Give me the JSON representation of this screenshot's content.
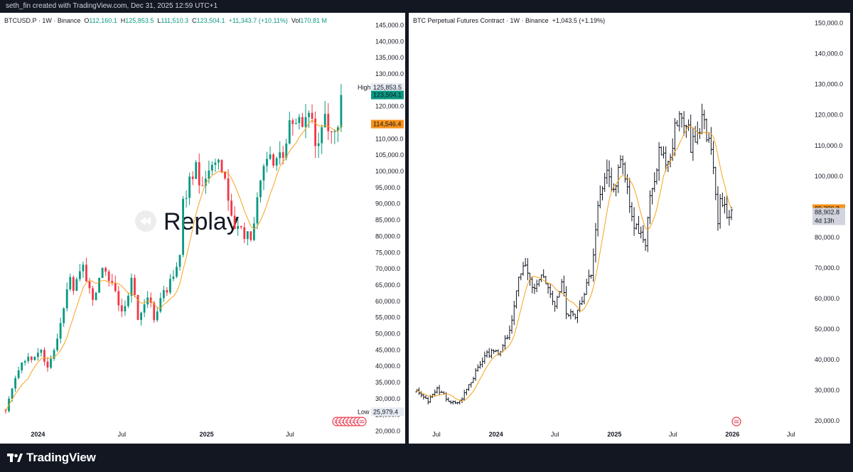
{
  "header": {
    "credit": "seth_fin created with TradingView.com, Dec 31, 2025 12:59 UTC+1"
  },
  "footer": {
    "brand": "TradingView"
  },
  "watermark": {
    "text": "Replay"
  },
  "colors": {
    "up": "#089981",
    "down": "#f23645",
    "ma": "#f7a21b",
    "bar": "#131722",
    "background": "#131722"
  },
  "left_legend": {
    "symbol": "BTCUSD.P · 1W · Binance",
    "open_label": "O",
    "open": "112,160.1",
    "high_label": "H",
    "high": "125,853.5",
    "low_label": "L",
    "low": "111,510.3",
    "close_label": "C",
    "close": "123,504.1",
    "change": "+11,343.7 (+10.11%)",
    "vol_label": "Vol",
    "vol": "170.81 M"
  },
  "right_legend": {
    "symbol": "BTC Perpetual Futures Contract · 1W · Binance",
    "change": "+1,043.5 (+1.19%)"
  },
  "chart_data": [
    {
      "type": "candlestick",
      "title": "BTCUSD.P · 1W · Binance",
      "y_ticks": [
        20000,
        25000,
        30000,
        35000,
        40000,
        45000,
        50000,
        55000,
        60000,
        65000,
        70000,
        75000,
        80000,
        85000,
        90000,
        95000,
        100000,
        105000,
        110000,
        115000,
        120000,
        125000,
        130000,
        135000,
        140000,
        145000
      ],
      "y_tick_labels": [
        "20,000.0",
        "25,000.0",
        "30,000.0",
        "35,000.0",
        "40,000.0",
        "45,000.0",
        "50,000.0",
        "55,000.0",
        "60,000.0",
        "65,000.0",
        "70,000.0",
        "75,000.0",
        "80,000.0",
        "85,000.0",
        "90,000.0",
        "95,000.0",
        "100,000.0",
        "105,000.0",
        "110,000.0",
        "115,000.0",
        "120,000.0",
        "125,000.0",
        "130,000.0",
        "135,000.0",
        "140,000.0",
        "145,000.0"
      ],
      "ylim": [
        17500,
        147500
      ],
      "x_labels": [
        "2024",
        "Jul",
        "2025",
        "Jul"
      ],
      "x_label_dates": [
        "2024-01-01",
        "2024-07-01",
        "2025-01-01",
        "2025-07-01"
      ],
      "x_range": [
        "2023-10-23",
        "2025-11-20"
      ],
      "key_values": {
        "high": 125853.5,
        "high_label": "High",
        "high_text": "125,853.5",
        "last_close": 123504.1,
        "last_close_text": "123,504.1",
        "ma_last": 114546.4,
        "ma_last_text": "114,546.4",
        "low": 25979.4,
        "low_label": "Low",
        "low_text": "25,979.4"
      },
      "anchors": [
        [
          "2023-10-23",
          26500
        ],
        [
          "2023-11-13",
          36500
        ],
        [
          "2023-12-04",
          42000
        ],
        [
          "2024-01-08",
          44000
        ],
        [
          "2024-01-22",
          40000
        ],
        [
          "2024-02-19",
          52000
        ],
        [
          "2024-03-11",
          68000
        ],
        [
          "2024-03-18",
          64000
        ],
        [
          "2024-04-08",
          70000
        ],
        [
          "2024-04-29",
          61000
        ],
        [
          "2024-05-20",
          69000
        ],
        [
          "2024-06-10",
          66000
        ],
        [
          "2024-07-01",
          57000
        ],
        [
          "2024-07-22",
          66000
        ],
        [
          "2024-08-05",
          55000
        ],
        [
          "2024-08-26",
          62000
        ],
        [
          "2024-09-09",
          55000
        ],
        [
          "2024-09-30",
          62000
        ],
        [
          "2024-10-21",
          68000
        ],
        [
          "2024-11-04",
          75000
        ],
        [
          "2024-11-11",
          90000
        ],
        [
          "2024-11-25",
          97000
        ],
        [
          "2024-12-09",
          102000
        ],
        [
          "2024-12-23",
          94000
        ],
        [
          "2025-01-13",
          102000
        ],
        [
          "2025-01-20",
          104000
        ],
        [
          "2025-02-10",
          97000
        ],
        [
          "2025-02-24",
          85000
        ],
        [
          "2025-03-10",
          82000
        ],
        [
          "2025-04-07",
          79000
        ],
        [
          "2025-04-21",
          93000
        ],
        [
          "2025-05-12",
          104000
        ],
        [
          "2025-05-26",
          104000
        ],
        [
          "2025-06-16",
          105000
        ],
        [
          "2025-07-07",
          117000
        ],
        [
          "2025-07-28",
          116000
        ],
        [
          "2025-08-11",
          118000
        ],
        [
          "2025-08-25",
          109000
        ],
        [
          "2025-09-15",
          116000
        ],
        [
          "2025-09-29",
          112000
        ],
        [
          "2025-10-13",
          112160
        ],
        [
          "2025-10-20",
          123504
        ]
      ],
      "ma_period_weeks": 8
    },
    {
      "type": "ohlc_bars",
      "title": "BTC Perpetual Futures Contract · 1W · Binance",
      "y_ticks": [
        20000,
        30000,
        40000,
        50000,
        60000,
        70000,
        80000,
        90000,
        100000,
        110000,
        120000,
        130000,
        140000,
        150000
      ],
      "y_tick_labels": [
        "20,000.0",
        "30,000.0",
        "40,000.0",
        "50,000.0",
        "60,000.0",
        "70,000.0",
        "80,000.0",
        "90,000.0",
        "100,000.0",
        "110,000.0",
        "120,000.0",
        "130,000.0",
        "140,000.0",
        "150,000.0"
      ],
      "ylim": [
        14000,
        152000
      ],
      "x_labels": [
        "Jul",
        "2024",
        "Jul",
        "2025",
        "Jul",
        "2026",
        "Jul"
      ],
      "x_label_dates": [
        "2023-07-01",
        "2024-01-01",
        "2024-07-01",
        "2025-01-01",
        "2025-07-01",
        "2026-01-01",
        "2026-07-01"
      ],
      "x_range": [
        "2023-04-15",
        "2026-08-10"
      ],
      "key_values": {
        "ma_last": 89390.8,
        "ma_last_text": "89,390.8",
        "last_close": 88902.8,
        "last_close_text": "88,902.8",
        "countdown": "4d 13h"
      },
      "anchors": [
        [
          "2023-05-01",
          29500
        ],
        [
          "2023-06-05",
          26500
        ],
        [
          "2023-07-03",
          30500
        ],
        [
          "2023-08-14",
          26000
        ],
        [
          "2023-09-11",
          26200
        ],
        [
          "2023-10-23",
          34500
        ],
        [
          "2023-12-04",
          42000
        ],
        [
          "2024-01-15",
          42500
        ],
        [
          "2024-02-19",
          52000
        ],
        [
          "2024-03-11",
          68000
        ],
        [
          "2024-04-08",
          70000
        ],
        [
          "2024-04-29",
          62000
        ],
        [
          "2024-05-20",
          69000
        ],
        [
          "2024-07-01",
          57000
        ],
        [
          "2024-07-22",
          66000
        ],
        [
          "2024-08-05",
          55000
        ],
        [
          "2024-09-09",
          55000
        ],
        [
          "2024-09-30",
          62000
        ],
        [
          "2024-10-21",
          68000
        ],
        [
          "2024-11-11",
          90000
        ],
        [
          "2024-11-25",
          97000
        ],
        [
          "2024-12-09",
          102000
        ],
        [
          "2024-12-23",
          94000
        ],
        [
          "2025-01-20",
          104000
        ],
        [
          "2025-02-10",
          97000
        ],
        [
          "2025-02-24",
          85000
        ],
        [
          "2025-04-07",
          79000
        ],
        [
          "2025-04-21",
          93000
        ],
        [
          "2025-05-19",
          107000
        ],
        [
          "2025-06-16",
          105000
        ],
        [
          "2025-07-14",
          118000
        ],
        [
          "2025-08-11",
          119000
        ],
        [
          "2025-08-25",
          110000
        ],
        [
          "2025-09-15",
          115000
        ],
        [
          "2025-10-06",
          121000
        ],
        [
          "2025-10-13",
          112000
        ],
        [
          "2025-10-27",
          108000
        ],
        [
          "2025-11-10",
          95000
        ],
        [
          "2025-11-17",
          85500
        ],
        [
          "2025-11-24",
          91000
        ],
        [
          "2025-12-01",
          89000
        ],
        [
          "2025-12-08",
          90000
        ],
        [
          "2025-12-15",
          86000
        ],
        [
          "2025-12-22",
          87800
        ],
        [
          "2025-12-29",
          88902.8
        ]
      ],
      "ma_period_weeks": 8
    }
  ]
}
